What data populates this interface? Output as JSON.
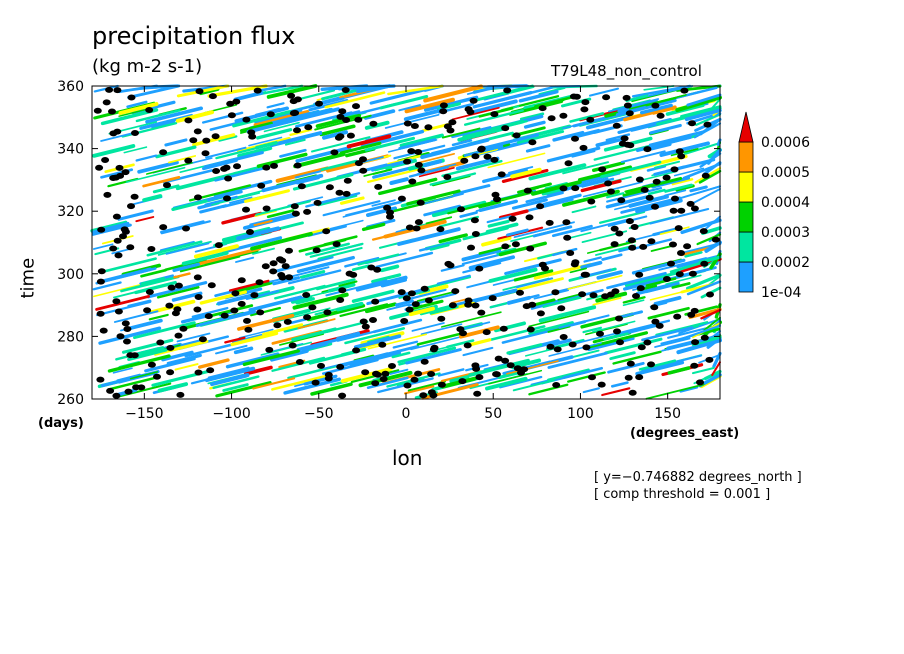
{
  "chart_data": {
    "type": "heatmap",
    "title": "precipitation flux",
    "units": "(kg m-2 s-1)",
    "run_label": "T79L48_non_control",
    "xlabel": "lon",
    "x_units": "(degrees_east)",
    "ylabel": "time",
    "y_units": "(days)",
    "xlim": [
      -180,
      180
    ],
    "ylim": [
      260,
      360
    ],
    "x_ticks": [
      -150,
      -100,
      -50,
      0,
      50,
      100,
      150
    ],
    "x_tick_labels": [
      "−150",
      "−100",
      "−50",
      "0",
      "50",
      "100",
      "150"
    ],
    "y_ticks": [
      260,
      280,
      300,
      320,
      340,
      360
    ],
    "y_tick_labels": [
      "260",
      "280",
      "300",
      "320",
      "340",
      "360"
    ],
    "colorbar": {
      "levels": [
        0.0001,
        0.0002,
        0.0003,
        0.0004,
        0.0005,
        0.0006
      ],
      "level_labels": [
        "1e-04",
        "0.0002",
        "0.0003",
        "0.0004",
        "0.0005",
        "0.0006"
      ],
      "colors": [
        "#1ea0ff",
        "#00e6a0",
        "#00d200",
        "#ffff00",
        "#ff9600",
        "#e60000"
      ]
    },
    "annotations": [
      "[ y=−0.746882 degrees_north ]",
      "[ comp threshold = 0.001 ]"
    ],
    "threshold_marker_color": "#000000"
  }
}
